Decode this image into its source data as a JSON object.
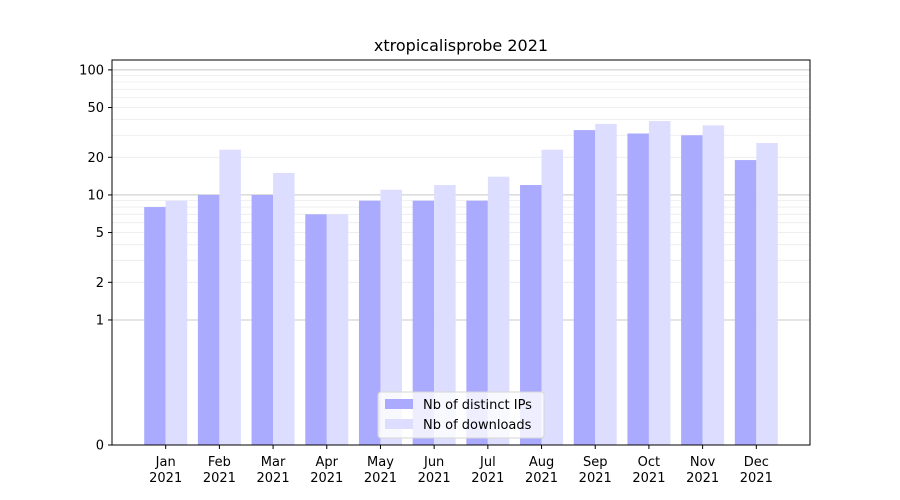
{
  "chart_data": {
    "type": "bar",
    "title": "xtropicalisprobe 2021",
    "xlabel": "",
    "ylabel": "",
    "y_scale": "symlog",
    "ylim": [
      0,
      120
    ],
    "y_ticks": [
      0,
      1,
      2,
      5,
      10,
      20,
      50,
      100
    ],
    "grid": "horizontal",
    "legend_position": "bottom-center",
    "categories": [
      "Jan\n2021",
      "Feb\n2021",
      "Mar\n2021",
      "Apr\n2021",
      "May\n2021",
      "Jun\n2021",
      "Jul\n2021",
      "Aug\n2021",
      "Sep\n2021",
      "Oct\n2021",
      "Nov\n2021",
      "Dec\n2021"
    ],
    "series": [
      {
        "name": "Nb of distinct IPs",
        "color": "#aaaaff",
        "values": [
          8,
          10,
          10,
          7,
          9,
          9,
          9,
          12,
          33,
          31,
          30,
          19
        ]
      },
      {
        "name": "Nb of downloads",
        "color": "#ddddff",
        "values": [
          9,
          23,
          15,
          7,
          11,
          12,
          14,
          23,
          37,
          39,
          36,
          26
        ]
      }
    ]
  }
}
